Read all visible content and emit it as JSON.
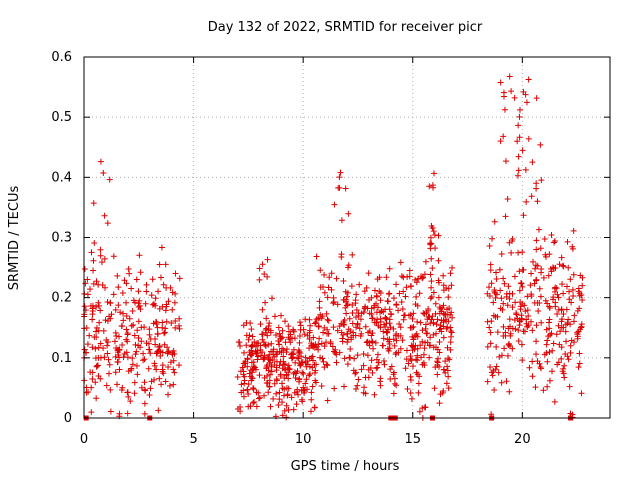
{
  "chart_data": {
    "type": "scatter",
    "title": "Day 132 of 2022, SRMTID for receiver picr",
    "xlabel": "GPS time / hours",
    "ylabel": "SRMTID / TECUs",
    "xlim": [
      0,
      24
    ],
    "ylim": [
      0,
      0.6
    ],
    "xticks": [
      0,
      5,
      10,
      15,
      20
    ],
    "yticks": [
      0,
      0.1,
      0.2,
      0.3,
      0.4,
      0.5,
      0.6
    ],
    "xtick_labels": [
      "0",
      "5",
      "10",
      "15",
      "20"
    ],
    "ytick_labels": [
      "0",
      "0.1",
      "0.2",
      "0.3",
      "0.4",
      "0.5",
      "0.6"
    ],
    "grid": true,
    "marker": "+",
    "color": "#dd0000",
    "axis_markers_x": [
      0.1,
      3.0,
      14.0,
      14.2,
      15.9,
      18.6,
      22.2
    ],
    "clusters": [
      {
        "start": 0.0,
        "end": 4.4,
        "n": 300,
        "base": 0.13,
        "spread": 0.09,
        "high_start": 0.4,
        "high_end": 1.2,
        "high": 0.44
      },
      {
        "start": 7.0,
        "end": 10.6,
        "n": 330,
        "base": 0.09,
        "spread": 0.06,
        "high_start": 7.9,
        "high_end": 8.4,
        "high": 0.28
      },
      {
        "start": 10.6,
        "end": 14.8,
        "n": 300,
        "base": 0.15,
        "spread": 0.08,
        "high_start": 11.4,
        "high_end": 12.1,
        "high": 0.41
      },
      {
        "start": 14.8,
        "end": 16.8,
        "n": 200,
        "base": 0.14,
        "spread": 0.09,
        "high_start": 15.6,
        "high_end": 16.2,
        "high": 0.43
      },
      {
        "start": 18.4,
        "end": 22.8,
        "n": 330,
        "base": 0.17,
        "spread": 0.1,
        "high_start": 18.9,
        "high_end": 21.0,
        "high": 0.59
      }
    ]
  }
}
